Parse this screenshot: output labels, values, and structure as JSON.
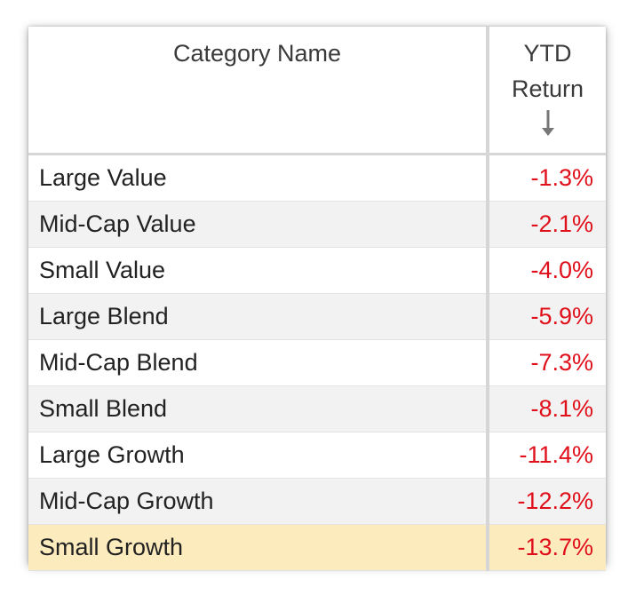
{
  "table": {
    "headers": {
      "category": "Category Name",
      "ytd_line1": "YTD",
      "ytd_line2": "Return"
    },
    "sort": {
      "column": "YTD Return",
      "icon": "sort-down-arrow-icon"
    },
    "rows": [
      {
        "category": "Large Value",
        "ytd": "-1.3%"
      },
      {
        "category": "Mid-Cap Value",
        "ytd": "-2.1%"
      },
      {
        "category": "Small Value",
        "ytd": "-4.0%"
      },
      {
        "category": "Large Blend",
        "ytd": "-5.9%"
      },
      {
        "category": "Mid-Cap Blend",
        "ytd": "-7.3%"
      },
      {
        "category": "Small Blend",
        "ytd": "-8.1%"
      },
      {
        "category": "Large Growth",
        "ytd": "-11.4%"
      },
      {
        "category": "Mid-Cap Growth",
        "ytd": "-12.2%"
      },
      {
        "category": "Small Growth",
        "ytd": "-13.7%"
      }
    ],
    "highlighted_row": "Small Growth"
  },
  "colors": {
    "negative": "#e0101b",
    "highlight": "#fcebbd",
    "stripe": "#f2f2f2",
    "grid": "#d6d6d6"
  }
}
